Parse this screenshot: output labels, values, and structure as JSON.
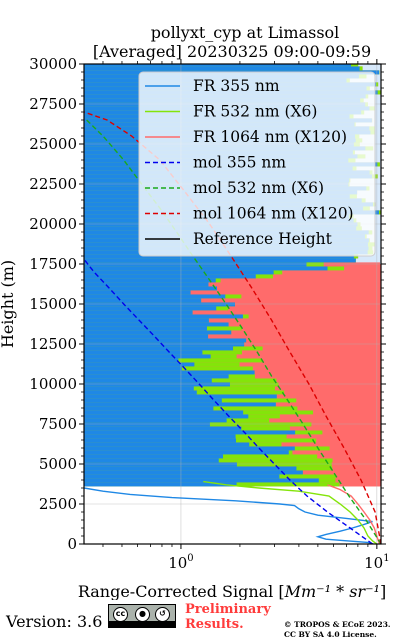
{
  "chart_data": {
    "type": "line",
    "title": "pollyxt_cyp at Limassol",
    "subtitle": "[Averaged] 20230325 09:00-09:59",
    "xlabel_text": "Range-Corrected Signal [",
    "xlabel_units": "Mm⁻¹ * sr⁻¹",
    "xlabel_end": "]",
    "ylabel": "Height (m)",
    "xscale": "log",
    "xlim": [
      0.32,
      10.5
    ],
    "ylim": [
      0,
      30000
    ],
    "yticks": [
      "0",
      "2500",
      "5000",
      "7500",
      "10000",
      "12500",
      "15000",
      "17500",
      "20000",
      "22500",
      "25000",
      "27500",
      "30000"
    ],
    "xticks": [
      {
        "base": "10",
        "exp": "0",
        "value": 1
      },
      {
        "base": "10",
        "exp": "1",
        "value": 10
      }
    ],
    "grid": true,
    "legend_position": "top-right",
    "legend": [
      {
        "label": "FR 355 nm",
        "style": "solid",
        "color": "#1f88e5"
      },
      {
        "label": "FR 532 nm (X6)",
        "style": "solid",
        "color": "#84e40a"
      },
      {
        "label": "FR 1064 nm (X120)",
        "style": "solid",
        "color": "#ff6b6b"
      },
      {
        "label": "mol 355 nm",
        "style": "dashed",
        "color": "#0000ee"
      },
      {
        "label": "mol 532 nm (X6)",
        "style": "dashed",
        "color": "#1aaa1a"
      },
      {
        "label": "mol 1064 nm (X120)",
        "style": "dashed",
        "color": "#dd0000"
      },
      {
        "label": "Reference Height",
        "style": "solid",
        "color": "#000000"
      }
    ],
    "series": [
      {
        "name": "FR 355 nm",
        "color": "#1f88e5",
        "style": "solid",
        "points": [
          [
            9.6,
            0
          ],
          [
            9.0,
            100
          ],
          [
            7.0,
            200
          ],
          [
            5.5,
            300
          ],
          [
            5.0,
            450
          ],
          [
            5.5,
            600
          ],
          [
            6.5,
            800
          ],
          [
            7.5,
            1000
          ],
          [
            8.5,
            1200
          ],
          [
            9.5,
            1400
          ],
          [
            7.0,
            1600
          ],
          [
            5.0,
            1800
          ],
          [
            4.3,
            2000
          ],
          [
            4.0,
            2200
          ],
          [
            3.8,
            2400
          ],
          [
            3.2,
            2500
          ],
          [
            1.9,
            2700
          ],
          [
            0.9,
            2900
          ],
          [
            0.55,
            3100
          ],
          [
            0.4,
            3300
          ],
          [
            0.32,
            3500
          ]
        ]
      },
      {
        "name": "FR 532 nm (X6)",
        "color": "#84e40a",
        "style": "solid",
        "points": [
          [
            10.0,
            0
          ],
          [
            9.5,
            200
          ],
          [
            9.0,
            500
          ],
          [
            8.6,
            1000
          ],
          [
            8.0,
            1500
          ],
          [
            7.3,
            2000
          ],
          [
            6.5,
            2500
          ],
          [
            5.7,
            3000
          ],
          [
            4.0,
            3300
          ],
          [
            2.5,
            3500
          ],
          [
            1.7,
            3700
          ],
          [
            1.3,
            3900
          ]
        ]
      },
      {
        "name": "FR 1064 nm (X120)",
        "color": "#ff6b6b",
        "style": "solid",
        "points": [
          [
            10.3,
            0
          ],
          [
            10.0,
            500
          ],
          [
            9.7,
            1000
          ],
          [
            9.2,
            1500
          ],
          [
            8.6,
            2000
          ],
          [
            8.0,
            2500
          ],
          [
            7.4,
            3000
          ],
          [
            6.5,
            3400
          ],
          [
            5.6,
            3700
          ]
        ]
      },
      {
        "name": "mol 355 nm",
        "color": "#0000ee",
        "style": "dashed",
        "points": [
          [
            9.5,
            0
          ],
          [
            7.3,
            1000
          ],
          [
            5.6,
            2000
          ],
          [
            4.4,
            3000
          ],
          [
            3.6,
            4000
          ],
          [
            3.0,
            5000
          ],
          [
            2.5,
            6000
          ],
          [
            2.1,
            7000
          ],
          [
            1.75,
            8000
          ],
          [
            1.47,
            9000
          ],
          [
            1.24,
            10000
          ],
          [
            1.04,
            11000
          ],
          [
            0.87,
            12000
          ],
          [
            0.73,
            13000
          ],
          [
            0.61,
            14000
          ],
          [
            0.51,
            15000
          ],
          [
            0.43,
            16000
          ],
          [
            0.36,
            17000
          ],
          [
            0.32,
            17800
          ]
        ]
      },
      {
        "name": "mol 532 nm (X6)",
        "color": "#1aaa1a",
        "style": "dashed",
        "points": [
          [
            10.5,
            0
          ],
          [
            8.8,
            1500
          ],
          [
            7.2,
            3000
          ],
          [
            6.0,
            4500
          ],
          [
            5.0,
            6000
          ],
          [
            4.2,
            7500
          ],
          [
            3.5,
            9000
          ],
          [
            2.9,
            10500
          ],
          [
            2.45,
            12000
          ],
          [
            2.05,
            13500
          ],
          [
            1.7,
            15000
          ],
          [
            1.4,
            16500
          ],
          [
            1.15,
            18000
          ],
          [
            0.95,
            19500
          ],
          [
            0.78,
            21000
          ],
          [
            0.63,
            22500
          ],
          [
            0.51,
            24000
          ],
          [
            0.4,
            25500
          ],
          [
            0.33,
            26500
          ]
        ]
      },
      {
        "name": "mol 1064 nm (X120)",
        "color": "#dd0000",
        "style": "dashed",
        "points": [
          [
            10.5,
            0
          ],
          [
            9.8,
            2000
          ],
          [
            8.3,
            4000
          ],
          [
            6.8,
            6000
          ],
          [
            5.5,
            8000
          ],
          [
            4.5,
            10000
          ],
          [
            3.6,
            12000
          ],
          [
            2.9,
            14000
          ],
          [
            2.3,
            16000
          ],
          [
            1.8,
            18000
          ],
          [
            1.4,
            20000
          ],
          [
            1.05,
            22000
          ],
          [
            0.78,
            24000
          ],
          [
            0.56,
            25500
          ],
          [
            0.42,
            26500
          ],
          [
            0.32,
            27000
          ]
        ]
      }
    ],
    "signal_field": {
      "band_height_step": 250,
      "blue_to": 17500,
      "green_mid": [
        3600,
        17800
      ]
    }
  },
  "footer": {
    "version": "Version: 3.6",
    "preliminary": [
      "Preliminary",
      "Results."
    ],
    "copyright": [
      "© TROPOS & ECoE 2023.",
      "CC BY SA 4.0 License."
    ],
    "cc_badge_icons": [
      "cc-icon",
      "by-icon",
      "sa-icon"
    ],
    "cc_badge_labels": [
      "cc",
      "BY",
      "SA"
    ]
  }
}
